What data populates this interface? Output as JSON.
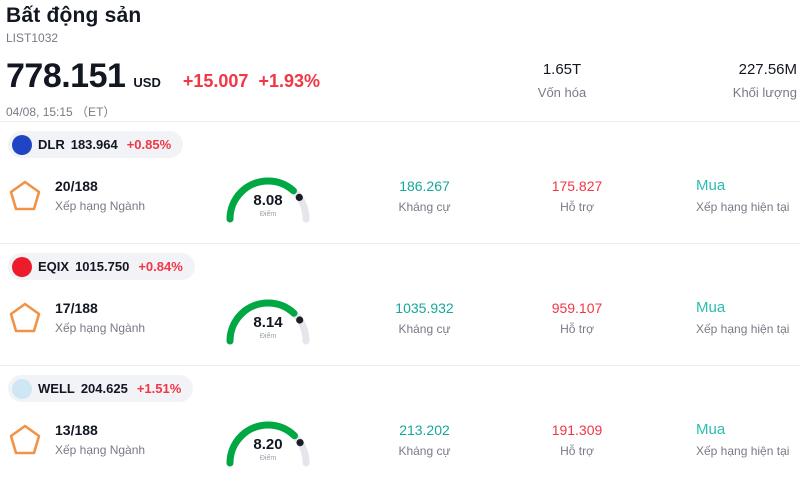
{
  "header": {
    "title": "Bất động sản",
    "code": "LIST1032",
    "price": "778.151",
    "currency": "USD",
    "change": "+15.007",
    "change_pct": "+1.93%",
    "datetime": "04/08, 15:15 （ET）",
    "market_cap": {
      "value": "1.65T",
      "label": "Vốn hóa"
    },
    "volume": {
      "value": "227.56M",
      "label": "Khối lượng"
    }
  },
  "colors": {
    "up_red": "#f23645",
    "teal_value": "#18a89b",
    "teal_rating": "#2abdb2",
    "gauge_green": "#00a843",
    "rank_badge_orange": "#f19346"
  },
  "rows": [
    {
      "symbol": "DLR",
      "price": "183.964",
      "change_pct": "+0.85%",
      "logo_icon": "dlr-logo",
      "logo_color": "#1f45c4",
      "rank": "20/188",
      "rank_label": "Xếp hạng Ngành",
      "score": "8.08",
      "score_label": "Điểm",
      "resistance": "186.267",
      "resistance_label": "Kháng cự",
      "support": "175.827",
      "support_label": "Hỗ trợ",
      "rating": "Mua",
      "rating_label": "Xếp hạng hiện tại"
    },
    {
      "symbol": "EQIX",
      "price": "1015.750",
      "change_pct": "+0.84%",
      "logo_icon": "eqix-logo",
      "logo_color": "#ec1c2d",
      "rank": "17/188",
      "rank_label": "Xếp hạng Ngành",
      "score": "8.14",
      "score_label": "Điểm",
      "resistance": "1035.932",
      "resistance_label": "Kháng cự",
      "support": "959.107",
      "support_label": "Hỗ trợ",
      "rating": "Mua",
      "rating_label": "Xếp hạng hiện tại"
    },
    {
      "symbol": "WELL",
      "price": "204.625",
      "change_pct": "+1.51%",
      "logo_icon": "well-logo",
      "logo_color": "#cfe6f5",
      "rank": "13/188",
      "rank_label": "Xếp hạng Ngành",
      "score": "8.20",
      "score_label": "Điểm",
      "resistance": "213.202",
      "resistance_label": "Kháng cự",
      "support": "191.309",
      "support_label": "Hỗ trợ",
      "rating": "Mua",
      "rating_label": "Xếp hạng hiện tại"
    }
  ]
}
